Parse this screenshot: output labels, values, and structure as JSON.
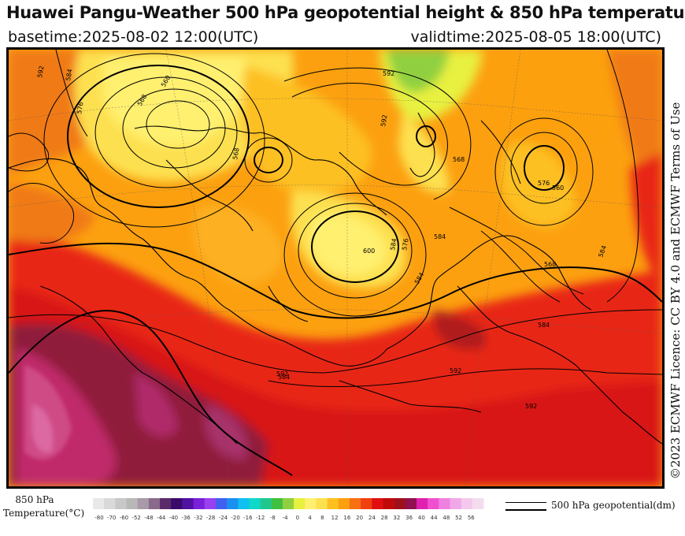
{
  "header": {
    "title": "Huawei Pangu-Weather 500 hPa geopotential height & 850 hPa temperature",
    "basetime": "basetime:2025-08-02 12:00(UTC)",
    "validtime": "validtime:2025-08-05 18:00(UTC)"
  },
  "credit": "©2023 ECMWF Licence: CC BY 4.0 and ECMWF Terms of Use",
  "legend": {
    "label_line1": "850 hPa",
    "label_line2": "Temperature(°C)",
    "ticks": [
      "-80",
      "-70",
      "-60",
      "-52",
      "-48",
      "-44",
      "-40",
      "-36",
      "-32",
      "-28",
      "-24",
      "-20",
      "-16",
      "-12",
      "-8",
      "-4",
      "0",
      "4",
      "8",
      "12",
      "16",
      "20",
      "24",
      "28",
      "32",
      "36",
      "40",
      "44",
      "48",
      "52",
      "56"
    ],
    "colors": [
      "#e8e8e8",
      "#d9d9d9",
      "#c8c8c8",
      "#b8b8b8",
      "#a89aa8",
      "#8a6a8a",
      "#5a2a6a",
      "#3a0a6a",
      "#5010a0",
      "#7a20d8",
      "#9a40f0",
      "#4060f0",
      "#1a90f0",
      "#10c0f0",
      "#10d8c8",
      "#20c890",
      "#40c040",
      "#90d040",
      "#e8f040",
      "#fff070",
      "#fde050",
      "#fdc020",
      "#fca010",
      "#f87010",
      "#f04010",
      "#e01010",
      "#c00a0a",
      "#a0101a",
      "#901050",
      "#e020b0",
      "#f050d0",
      "#f080e0",
      "#f0a8e8",
      "#f4c8ec",
      "#f4dcef"
    ],
    "contour_label": "500 hPa geopotential(dm)"
  },
  "map": {
    "contour_labels": [
      "592",
      "584",
      "576",
      "568",
      "560",
      "568",
      "592",
      "592",
      "584",
      "576",
      "568",
      "584",
      "600",
      "584",
      "592",
      "584",
      "576",
      "560",
      "568",
      "584",
      "592",
      "584",
      "592"
    ]
  }
}
